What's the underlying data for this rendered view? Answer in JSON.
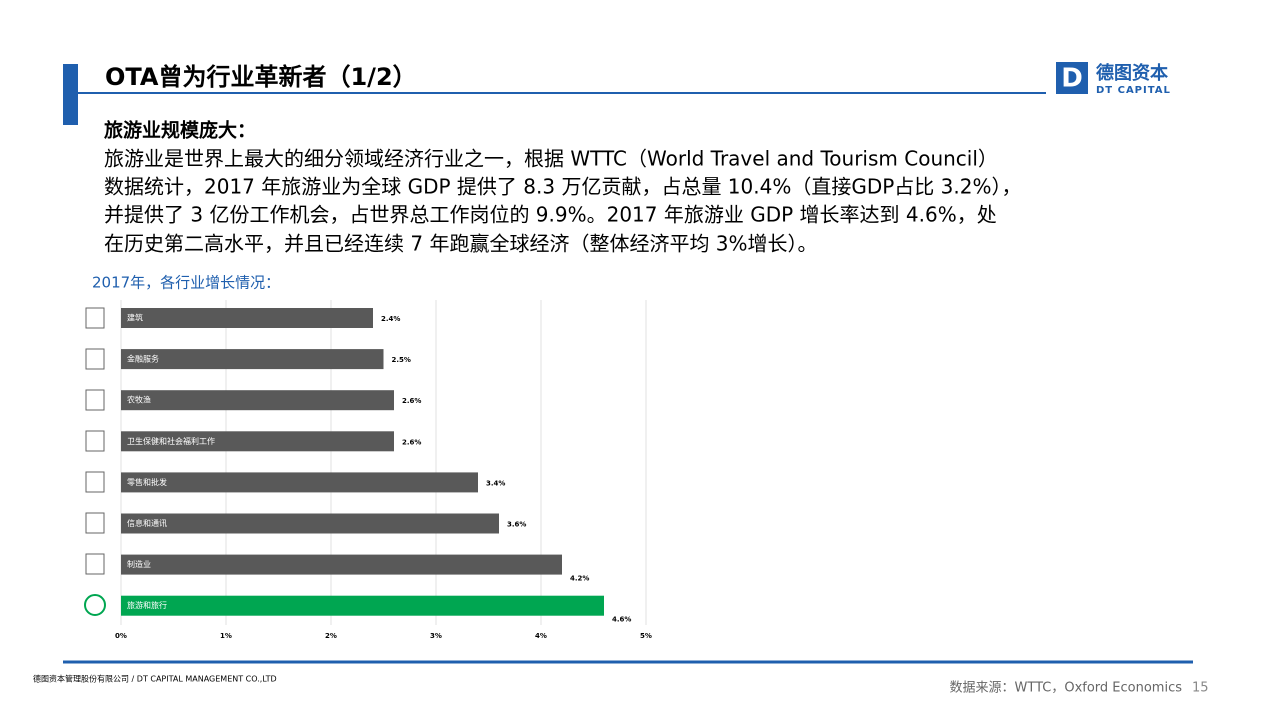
{
  "header": {
    "title": "OTA曾为行业革新者（1/2）",
    "logo_cn": "德图资本",
    "logo_en": "DT CAPITAL",
    "logo_mark": "D"
  },
  "body": {
    "heading": "旅游业规模庞大：",
    "lines": [
      "旅游业是世界上最大的细分领域经济行业之一，根据 WTTC（World Travel and Tourism Council）",
      "数据统计，2017 年旅游业为全球 GDP 提供了 8.3 万亿贡献，占总量 10.4%（直接GDP占比 3.2%），",
      "并提供了 3 亿份工作机会，占世界总工作岗位的 9.9%。2017 年旅游业 GDP 增长率达到 4.6%，处",
      "在历史第二高水平，并且已经连续 7 年跑赢全球经济（整体经济平均 3%增长）。"
    ],
    "subheading": "2017年，各行业增长情况："
  },
  "chart_data": {
    "type": "hbar",
    "categories": [
      "建筑",
      "金融服务",
      "农牧渔",
      "卫生保健和社会福利工作",
      "零售和批发",
      "信息和通讯",
      "制造业",
      "旅游和旅行"
    ],
    "values": [
      2.4,
      2.5,
      2.6,
      2.6,
      3.4,
      3.6,
      4.2,
      4.6
    ],
    "value_labels": [
      "2.4%",
      "2.5%",
      "2.6%",
      "2.6%",
      "3.4%",
      "3.6%",
      "4.2%",
      "4.6%"
    ],
    "colors": [
      "#595959",
      "#595959",
      "#595959",
      "#595959",
      "#595959",
      "#595959",
      "#595959",
      "#00a651"
    ],
    "xlim": [
      0,
      5
    ],
    "xticks": [
      {
        "value": 0,
        "label": "0%"
      },
      {
        "value": 1,
        "label": "1%"
      },
      {
        "value": 2,
        "label": "2%"
      },
      {
        "value": 3,
        "label": "3%"
      },
      {
        "value": 4,
        "label": "4%"
      },
      {
        "value": 5,
        "label": "5%"
      }
    ],
    "grid": true
  },
  "footer": {
    "company": "德图资本管理股份有限公司 / DT CAPITAL MANAGEMENT CO.,LTD",
    "source": "数据来源：WTTC，Oxford  Economics",
    "page": "15"
  }
}
